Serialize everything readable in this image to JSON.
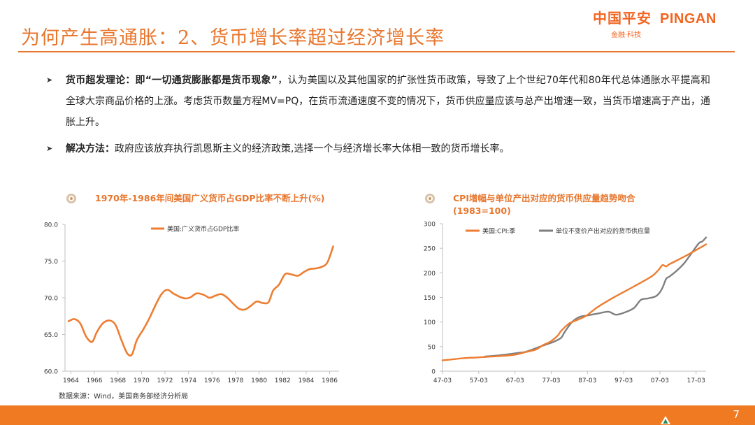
{
  "slide": {
    "title": "为何产生高通胀：2、货币增长率超过经济增长率",
    "page_number": "7",
    "source": "数据来源：Wind，美国商务部经济分析局"
  },
  "brand": {
    "name_cn": "中国平安",
    "name_en": "PINGAN",
    "tagline": "金融·科技",
    "color": "#f26522"
  },
  "bullets": [
    {
      "head": "货币超发理论：即“一切通货膨胀都是货币现象”",
      "text": "，认为美国以及其他国家的扩张性货币政策，导致了上个世纪70年代和80年代总体通胀水平提高和全球大宗商品价格的上涨。考虑货币数量方程MV=PQ，在货币流通速度不变的情况下，货币供应量应该与总产出增速一致，当货币增速高于产出，通胀上升。"
    },
    {
      "head": "解决方法：",
      "text": "政府应该放弃执行凯恩斯主义的经济政策,选择一个与经济增长率大体相一致的货币增长率。"
    }
  ],
  "colors": {
    "accent": "#e8762d",
    "series_orange": "#ed7d31",
    "series_gray": "#7f7f7f"
  },
  "chart_data": [
    {
      "type": "line",
      "title": "1970年-1986年间美国广义货币占GDP比率不断上升(%)",
      "xlabel": "",
      "ylabel": "",
      "xlim": [
        1963.5,
        1986.8
      ],
      "ylim": [
        60,
        80
      ],
      "yticks": [
        "60.0",
        "65.0",
        "70.0",
        "75.0",
        "80.0"
      ],
      "xticks": [
        "1964",
        "1966",
        "1968",
        "1970",
        "1972",
        "1974",
        "1976",
        "1978",
        "1980",
        "1982",
        "1984",
        "1986"
      ],
      "grid": false,
      "legend": "top-center",
      "series": [
        {
          "name": "美国:广义货币占GDP比率",
          "x": [
            1963.8,
            1964.3,
            1964.8,
            1965.3,
            1965.8,
            1966.2,
            1966.7,
            1967.3,
            1967.8,
            1968.3,
            1968.8,
            1969.2,
            1969.6,
            1970.2,
            1970.7,
            1971.2,
            1971.7,
            1972.2,
            1972.7,
            1973.3,
            1973.8,
            1974.2,
            1974.7,
            1975.3,
            1975.8,
            1976.3,
            1976.8,
            1977.3,
            1977.8,
            1978.3,
            1978.8,
            1979.3,
            1979.8,
            1980.3,
            1980.8,
            1981.2,
            1981.7,
            1982.2,
            1982.7,
            1983.3,
            1983.8,
            1984.3,
            1984.8,
            1985.3,
            1985.8,
            1986.3
          ],
          "values": [
            66.8,
            67.1,
            66.5,
            64.7,
            64.0,
            65.3,
            66.5,
            66.9,
            66.3,
            64.2,
            62.4,
            62.3,
            64.2,
            65.8,
            67.3,
            69.0,
            70.5,
            71.1,
            70.6,
            70.1,
            69.9,
            70.1,
            70.6,
            70.4,
            70.0,
            70.3,
            70.5,
            70.0,
            69.2,
            68.5,
            68.4,
            68.9,
            69.5,
            69.3,
            69.4,
            71.0,
            71.8,
            73.2,
            73.2,
            73.0,
            73.5,
            73.9,
            74.0,
            74.2,
            74.8,
            77.0
          ]
        }
      ]
    },
    {
      "type": "line",
      "title": "CPI增幅与单位产出对应的货币供应量趋势吻合(1983=100)",
      "xlabel": "",
      "ylabel": "",
      "xlim": [
        1947.25,
        2020.0
      ],
      "ylim": [
        0,
        300
      ],
      "yticks": [
        "0",
        "50",
        "100",
        "150",
        "200",
        "250",
        "300"
      ],
      "xticks": [
        "47-03",
        "57-03",
        "67-03",
        "77-03",
        "87-03",
        "97-03",
        "07-03",
        "17-03"
      ],
      "grid": false,
      "legend": "top",
      "series": [
        {
          "name": "美国:CPI:季",
          "x": [
            1947.25,
            1950,
            1953,
            1957,
            1960,
            1965,
            1968,
            1970,
            1973,
            1975,
            1977,
            1979,
            1980,
            1982,
            1983,
            1985,
            1987,
            1990,
            1995,
            2000,
            2005,
            2007,
            2008,
            2009,
            2010,
            2015,
            2020
          ],
          "values": [
            22,
            24,
            26.5,
            28,
            29.5,
            31.5,
            34.5,
            38.5,
            44,
            53,
            60,
            72,
            82,
            96,
            100,
            106,
            113,
            130,
            152,
            172,
            193,
            207,
            216,
            213,
            218,
            237,
            258
          ]
        },
        {
          "name": "单位不变价产出对应的货币供应量",
          "x": [
            1959,
            1962,
            1965,
            1968,
            1970,
            1972,
            1975,
            1978,
            1980,
            1981,
            1983,
            1985,
            1987,
            1990,
            1993,
            1995,
            1997,
            2000,
            2002,
            2004,
            2006,
            2007,
            2008,
            2009,
            2010,
            2012,
            2014,
            2016,
            2018,
            2019,
            2020
          ],
          "values": [
            30,
            31.5,
            34,
            37,
            39,
            44,
            52,
            60,
            68,
            80,
            100,
            110,
            113,
            117,
            121,
            115,
            118,
            128,
            145,
            148,
            152,
            158,
            170,
            188,
            193,
            205,
            220,
            240,
            260,
            264,
            272
          ]
        }
      ]
    }
  ]
}
